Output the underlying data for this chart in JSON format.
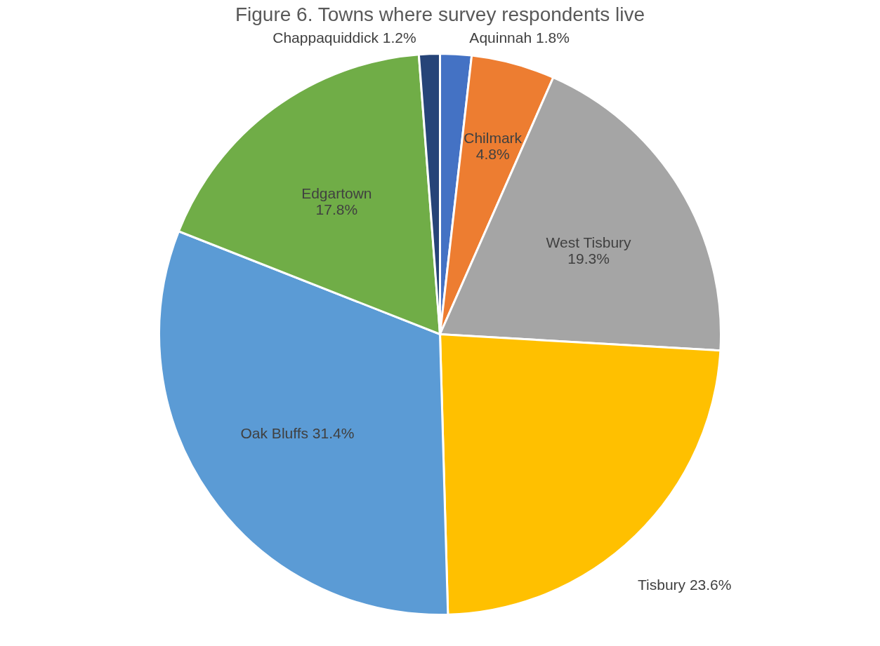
{
  "chart_data": {
    "type": "pie",
    "title": "Figure 6. Towns where survey respondents live",
    "categories": [
      "Aquinnah",
      "Chilmark",
      "West Tisbury",
      "Tisbury",
      "Oak Bluffs",
      "Edgartown",
      "Chappaquiddick"
    ],
    "values": [
      1.8,
      4.8,
      19.3,
      23.6,
      31.4,
      17.8,
      1.2
    ],
    "value_labels": [
      "1.8%",
      "4.8%",
      "19.3%",
      "23.6%",
      "31.4%",
      "17.8%",
      "1.2%"
    ],
    "colors": [
      "#4472c4",
      "#ed7d31",
      "#a5a5a5",
      "#ffc000",
      "#5b9bd5",
      "#70ad47",
      "#264478"
    ],
    "legend": false
  }
}
